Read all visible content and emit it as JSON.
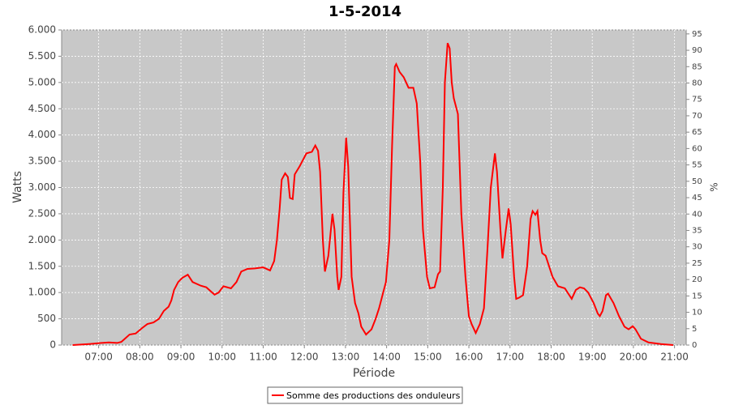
{
  "chart_data": {
    "type": "line",
    "title": "1-5-2014",
    "x_label": "Période",
    "y_label": "Watts",
    "y2_label": "%",
    "x": [
      "06:22",
      "06:46",
      "07:04",
      "07:15",
      "07:27",
      "07:33",
      "07:39",
      "07:45",
      "07:54",
      "08:03",
      "08:11",
      "08:20",
      "08:28",
      "08:35",
      "08:42",
      "08:46",
      "08:50",
      "08:56",
      "09:02",
      "09:10",
      "09:17",
      "09:29",
      "09:37",
      "09:49",
      "09:55",
      "10:02",
      "10:13",
      "10:21",
      "10:28",
      "10:37",
      "10:48",
      "11:00",
      "11:10",
      "11:16",
      "11:20",
      "11:24",
      "11:27",
      "11:32",
      "11:36",
      "11:39",
      "11:43",
      "11:46",
      "11:53",
      "12:03",
      "12:11",
      "12:16",
      "12:20",
      "12:23",
      "12:27",
      "12:30",
      "12:35",
      "12:41",
      "12:44",
      "12:48",
      "12:50",
      "12:54",
      "12:57",
      "13:01",
      "13:04",
      "13:09",
      "13:14",
      "13:19",
      "13:23",
      "13:30",
      "13:38",
      "13:44",
      "13:49",
      "13:55",
      "13:59",
      "14:04",
      "14:08",
      "14:12",
      "14:14",
      "14:19",
      "14:25",
      "14:32",
      "14:39",
      "14:44",
      "14:49",
      "14:53",
      "14:59",
      "15:03",
      "15:10",
      "15:15",
      "15:18",
      "15:22",
      "15:25",
      "15:29",
      "15:32",
      "15:35",
      "15:38",
      "15:44",
      "15:49",
      "15:55",
      "16:00",
      "16:04",
      "16:10",
      "16:16",
      "16:22",
      "16:27",
      "16:32",
      "16:38",
      "16:41",
      "16:46",
      "16:49",
      "16:54",
      "16:58",
      "17:01",
      "17:06",
      "17:09",
      "17:13",
      "17:19",
      "17:25",
      "17:30",
      "17:33",
      "17:37",
      "17:40",
      "17:44",
      "17:47",
      "17:52",
      "17:57",
      "18:02",
      "18:10",
      "18:20",
      "18:30",
      "18:36",
      "18:42",
      "18:48",
      "18:54",
      "19:02",
      "19:08",
      "19:11",
      "19:15",
      "19:20",
      "19:23",
      "19:31",
      "19:39",
      "19:47",
      "19:53",
      "19:59",
      "20:03",
      "20:11",
      "20:22",
      "20:40",
      "20:58"
    ],
    "series": [
      {
        "name": "Somme des productions des onduleurs",
        "color": "#ff0000",
        "values": [
          0,
          20,
          40,
          50,
          40,
          60,
          130,
          200,
          220,
          320,
          400,
          430,
          500,
          650,
          730,
          850,
          1050,
          1200,
          1280,
          1340,
          1200,
          1130,
          1100,
          960,
          1000,
          1120,
          1080,
          1200,
          1400,
          1450,
          1460,
          1480,
          1420,
          1600,
          2000,
          2600,
          3150,
          3270,
          3200,
          2800,
          2780,
          3250,
          3400,
          3650,
          3680,
          3800,
          3700,
          3300,
          2000,
          1400,
          1700,
          2500,
          2200,
          1300,
          1050,
          1300,
          2900,
          3950,
          3400,
          1300,
          800,
          600,
          350,
          200,
          300,
          500,
          700,
          1000,
          1200,
          2000,
          3800,
          5300,
          5350,
          5200,
          5100,
          4900,
          4900,
          4600,
          3500,
          2200,
          1300,
          1080,
          1100,
          1350,
          1400,
          3000,
          5000,
          5750,
          5650,
          5000,
          4700,
          4400,
          2500,
          1300,
          550,
          400,
          230,
          400,
          700,
          1800,
          3000,
          3650,
          3300,
          2200,
          1650,
          2200,
          2600,
          2300,
          1300,
          880,
          900,
          950,
          1500,
          2400,
          2550,
          2480,
          2550,
          2000,
          1750,
          1700,
          1500,
          1300,
          1120,
          1080,
          880,
          1050,
          1100,
          1080,
          1000,
          800,
          600,
          550,
          650,
          950,
          980,
          800,
          550,
          350,
          300,
          360,
          300,
          120,
          50,
          20,
          0
        ]
      }
    ],
    "xlim": [
      "06:06",
      "21:17"
    ],
    "xticks": [
      "07:00",
      "08:00",
      "09:00",
      "10:00",
      "11:00",
      "12:00",
      "13:00",
      "14:00",
      "15:00",
      "16:00",
      "17:00",
      "18:00",
      "19:00",
      "20:00",
      "21:00"
    ],
    "ylim": [
      0,
      6000
    ],
    "yticks": [
      0,
      500,
      {
        "value": 1000,
        "label": "1.000"
      },
      {
        "value": 1500,
        "label": "1.500"
      },
      {
        "value": 2000,
        "label": "2.000"
      },
      {
        "value": 2500,
        "label": "2.500"
      },
      {
        "value": 3000,
        "label": "3.000"
      },
      {
        "value": 3500,
        "label": "3.500"
      },
      {
        "value": 4000,
        "label": "4.000"
      },
      {
        "value": 4500,
        "label": "4.500"
      },
      {
        "value": 5000,
        "label": "5.000"
      },
      {
        "value": 5500,
        "label": "5.500"
      },
      {
        "value": 6000,
        "label": "6.000"
      }
    ],
    "y2lim": [
      0,
      96.2
    ],
    "y2ticks": [
      0,
      5,
      10,
      15,
      20,
      25,
      30,
      35,
      40,
      45,
      50,
      55,
      60,
      65,
      70,
      75,
      80,
      85,
      90,
      95
    ],
    "grid": true,
    "legend": "bottom",
    "background": "#c8c8c8"
  }
}
